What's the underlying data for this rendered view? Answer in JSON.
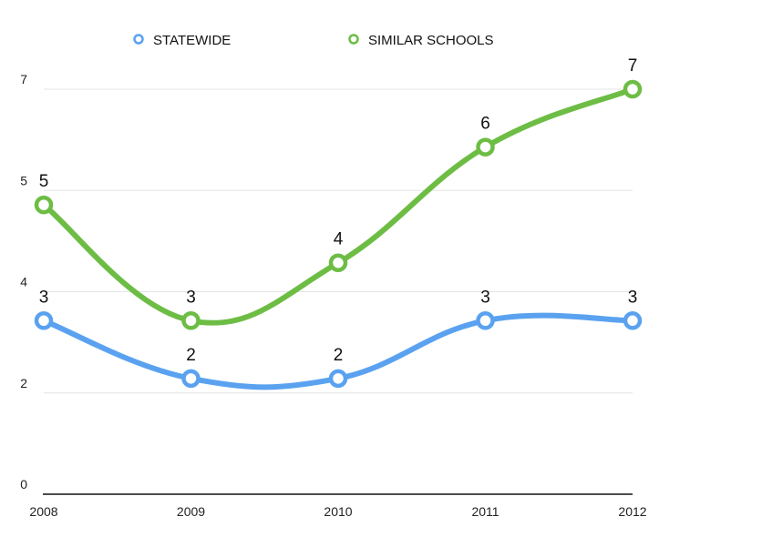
{
  "chart_data": {
    "type": "line",
    "x": [
      "2008",
      "2009",
      "2010",
      "2011",
      "2012"
    ],
    "y_ticks": [
      "0",
      "2",
      "4",
      "5",
      "7"
    ],
    "y_tick_values": [
      0,
      1.75,
      3.5,
      5.25,
      7
    ],
    "ylim": [
      0,
      7
    ],
    "grid": true,
    "legend_position": "top",
    "series": [
      {
        "name": "STATEWIDE",
        "color": "#5aa2f0",
        "values": [
          3,
          2,
          2,
          3,
          3
        ],
        "labels": [
          "3",
          "2",
          "2",
          "3",
          "3"
        ]
      },
      {
        "name": "SIMILAR SCHOOLS",
        "color": "#6dbd45",
        "values": [
          5,
          3,
          4,
          6,
          7
        ],
        "labels": [
          "5",
          "3",
          "4",
          "6",
          "7"
        ]
      }
    ]
  }
}
